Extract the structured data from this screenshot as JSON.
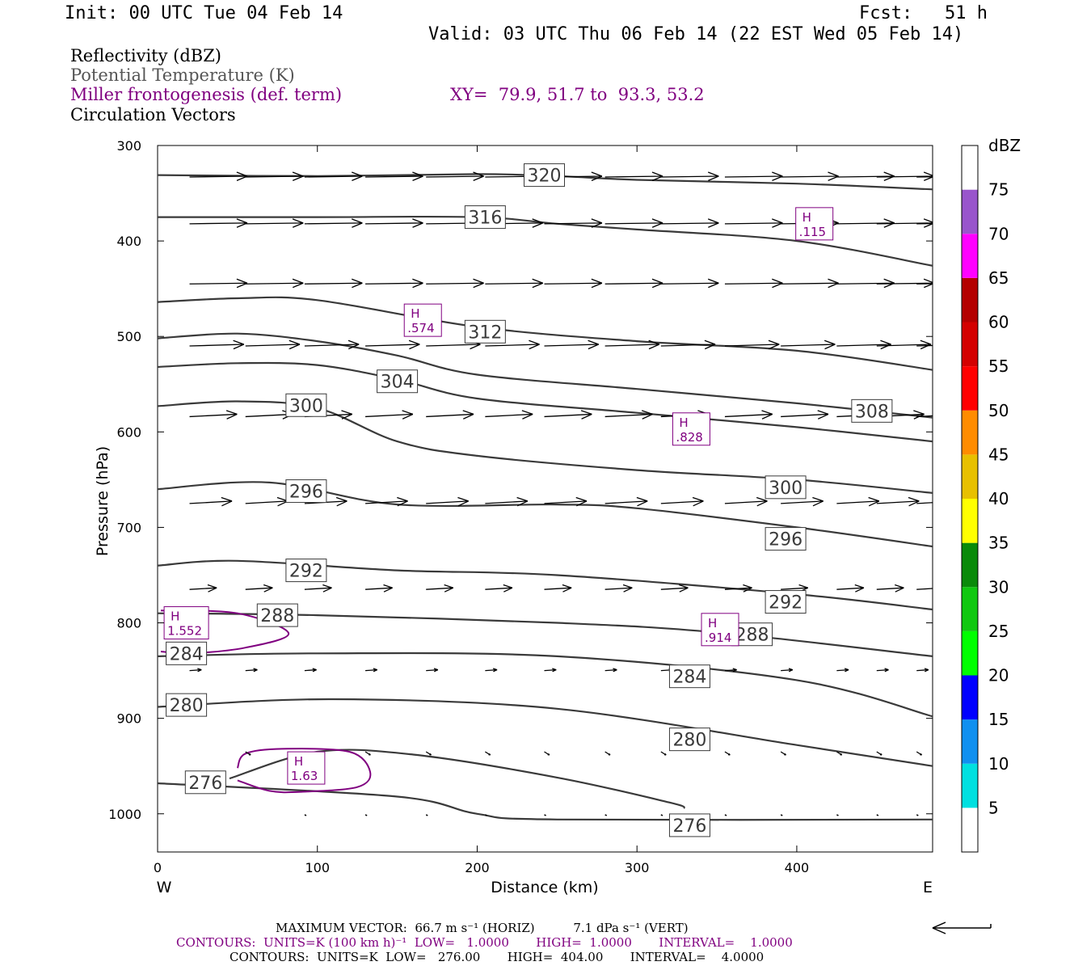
{
  "header": {
    "init": "Init: 00 UTC Tue 04 Feb 14",
    "fcst": "Fcst:   51 h",
    "valid": "Valid: 03 UTC Thu 06 Feb 14 (22 EST Wed 05 Feb 14)"
  },
  "legend": {
    "fields": [
      {
        "label": "Reflectivity (dBZ)",
        "color": "#000000"
      },
      {
        "label": "Potential Temperature (K)",
        "color": "#555555"
      },
      {
        "label": "Miller frontogenesis (def. term)",
        "color": "#800080"
      },
      {
        "label": "Circulation Vectors",
        "color": "#000000"
      }
    ],
    "xy": "XY=  79.9, 51.7 to  93.3, 53.2"
  },
  "footer": {
    "max_vector": "MAXIMUM VECTOR:  66.7 m s⁻¹ (HORIZ)          7.1 dPa s⁻¹ (VERT)",
    "contours_fronto": "CONTOURS:  UNITS=K (100 km h)⁻¹  LOW=   1.0000       HIGH=  1.0000       INTERVAL=    1.0000",
    "contours_theta": "CONTOURS:  UNITS=K  LOW=   276.00       HIGH=  404.00       INTERVAL=    4.0000"
  },
  "colorbar": {
    "title": "dBZ",
    "levels": [
      "5",
      "10",
      "15",
      "20",
      "25",
      "30",
      "35",
      "40",
      "45",
      "50",
      "55",
      "60",
      "65",
      "70",
      "75"
    ],
    "colors": [
      "#ffffff",
      "#00e0e0",
      "#1090f0",
      "#0000ff",
      "#00ff00",
      "#10c810",
      "#0a8a0a",
      "#ffff00",
      "#e8c000",
      "#ff8c00",
      "#ff0000",
      "#d40000",
      "#b40000",
      "#ff00ff",
      "#9955cc",
      "#ffffff"
    ]
  },
  "chart_data": {
    "type": "line",
    "title": "",
    "xlabel": "Distance (km)",
    "ylabel": "Pressure (hPa)",
    "xlim": [
      0,
      485
    ],
    "ylim": [
      300,
      1040
    ],
    "y_reversed": true,
    "x_ticks": [
      0,
      100,
      200,
      300,
      400
    ],
    "y_ticks": [
      300,
      400,
      500,
      600,
      700,
      800,
      900,
      1000
    ],
    "x_end_labels": {
      "left": "W",
      "right": "E"
    },
    "theta_contours": [
      {
        "value": 320,
        "points": [
          [
            0,
            331
          ],
          [
            100,
            332
          ],
          [
            200,
            330
          ],
          [
            250,
            332
          ],
          [
            300,
            336
          ],
          [
            400,
            340
          ],
          [
            485,
            346
          ]
        ],
        "labels": [
          [
            242,
            331
          ]
        ]
      },
      {
        "value": 316,
        "points": [
          [
            0,
            375
          ],
          [
            100,
            375
          ],
          [
            200,
            375
          ],
          [
            250,
            382
          ],
          [
            300,
            388
          ],
          [
            400,
            400
          ],
          [
            485,
            426
          ]
        ],
        "labels": [
          [
            205,
            375
          ]
        ]
      },
      {
        "value": 312,
        "points": [
          [
            0,
            464
          ],
          [
            50,
            460
          ],
          [
            100,
            462
          ],
          [
            200,
            490
          ],
          [
            300,
            505
          ],
          [
            400,
            515
          ],
          [
            485,
            535
          ]
        ],
        "labels": [
          [
            205,
            495
          ]
        ]
      },
      {
        "value": 308,
        "points": [
          [
            0,
            502
          ],
          [
            50,
            497
          ],
          [
            100,
            505
          ],
          [
            150,
            520
          ],
          [
            200,
            540
          ],
          [
            300,
            555
          ],
          [
            400,
            570
          ],
          [
            485,
            585
          ]
        ],
        "labels": [
          [
            447,
            578
          ]
        ]
      },
      {
        "value": 304,
        "points": [
          [
            0,
            532
          ],
          [
            50,
            528
          ],
          [
            100,
            530
          ],
          [
            150,
            545
          ],
          [
            200,
            565
          ],
          [
            300,
            580
          ],
          [
            400,
            595
          ],
          [
            485,
            610
          ]
        ],
        "labels": [
          [
            150,
            547
          ]
        ]
      },
      {
        "value": 300,
        "points": [
          [
            0,
            573
          ],
          [
            50,
            568
          ],
          [
            100,
            575
          ],
          [
            150,
            610
          ],
          [
            200,
            625
          ],
          [
            300,
            640
          ],
          [
            400,
            650
          ],
          [
            485,
            664
          ]
        ],
        "labels": [
          [
            93,
            572
          ],
          [
            393,
            658
          ]
        ]
      },
      {
        "value": 296,
        "points": [
          [
            0,
            660
          ],
          [
            70,
            653
          ],
          [
            150,
            676
          ],
          [
            250,
            676
          ],
          [
            300,
            680
          ],
          [
            400,
            700
          ],
          [
            485,
            720
          ]
        ],
        "labels": [
          [
            93,
            662
          ],
          [
            393,
            712
          ]
        ]
      },
      {
        "value": 292,
        "points": [
          [
            0,
            740
          ],
          [
            50,
            735
          ],
          [
            150,
            745
          ],
          [
            250,
            750
          ],
          [
            400,
            770
          ],
          [
            485,
            786
          ]
        ],
        "labels": [
          [
            93,
            745
          ],
          [
            393,
            778
          ]
        ]
      },
      {
        "value": 288,
        "points": [
          [
            0,
            790
          ],
          [
            100,
            792
          ],
          [
            250,
            800
          ],
          [
            350,
            810
          ],
          [
            485,
            835
          ]
        ],
        "labels": [
          [
            75,
            792
          ],
          [
            372,
            812
          ]
        ]
      },
      {
        "value": 284,
        "points": [
          [
            0,
            835
          ],
          [
            100,
            832
          ],
          [
            250,
            835
          ],
          [
            400,
            860
          ],
          [
            485,
            898
          ]
        ],
        "labels": [
          [
            18,
            832
          ],
          [
            333,
            856
          ]
        ]
      },
      {
        "value": 280,
        "points": [
          [
            0,
            888
          ],
          [
            110,
            880
          ],
          [
            250,
            890
          ],
          [
            400,
            928
          ],
          [
            485,
            950
          ]
        ],
        "labels": [
          [
            18,
            886
          ],
          [
            333,
            922
          ]
        ]
      },
      {
        "value": 276,
        "points": [
          [
            0,
            968
          ],
          [
            150,
            982
          ],
          [
            200,
            1000
          ],
          [
            250,
            1006
          ],
          [
            485,
            1006
          ]
        ],
        "labels": [
          [
            30,
            967
          ],
          [
            333,
            1012
          ]
        ]
      },
      {
        "value": 276,
        "points": [
          [
            45,
            963
          ],
          [
            100,
            935
          ],
          [
            160,
            938
          ],
          [
            250,
            962
          ],
          [
            320,
            988
          ],
          [
            330,
            994
          ]
        ],
        "labels": []
      }
    ],
    "frontogenesis_maxima": [
      {
        "label": "H",
        "value": "1.552",
        "x": 18,
        "y": 800
      },
      {
        "label": "H",
        "value": "1.63",
        "x": 93,
        "y": 952
      },
      {
        "label": "H",
        "value": ".574",
        "x": 166,
        "y": 483
      },
      {
        "label": "H",
        "value": ".828",
        "x": 334,
        "y": 597
      },
      {
        "label": "H",
        "value": ".914",
        "x": 352,
        "y": 807
      },
      {
        "label": "H",
        "value": ".115",
        "x": 411,
        "y": 382
      }
    ],
    "frontogenesis_contours": [
      {
        "value": 1.0,
        "points": [
          [
            2,
            787
          ],
          [
            50,
            790
          ],
          [
            82,
            811
          ],
          [
            55,
            826
          ],
          [
            20,
            832
          ],
          [
            2,
            830
          ]
        ]
      },
      {
        "value": 1.0,
        "points": [
          [
            50,
            952
          ],
          [
            55,
            937
          ],
          [
            78,
            932
          ],
          [
            120,
            935
          ],
          [
            133,
            956
          ],
          [
            125,
            972
          ],
          [
            90,
            977
          ],
          [
            70,
            976
          ],
          [
            50,
            965
          ]
        ]
      }
    ],
    "vector_rows": [
      {
        "p": 333,
        "xs": [
          20,
          55,
          92,
          130,
          168,
          205,
          242,
          280,
          315,
          355,
          390,
          425,
          450,
          475
        ],
        "u": 34,
        "w": -1
      },
      {
        "p": 382,
        "xs": [
          20,
          55,
          92,
          130,
          168,
          205,
          242,
          280,
          315,
          355,
          390,
          425,
          450,
          475
        ],
        "u": 34,
        "w": -1
      },
      {
        "p": 445,
        "xs": [
          20,
          55,
          92,
          130,
          168,
          205,
          242,
          280,
          315,
          355,
          390,
          425,
          450,
          475
        ],
        "u": 34,
        "w": -1
      },
      {
        "p": 510,
        "xs": [
          20,
          55,
          92,
          130,
          168,
          205,
          242,
          280,
          315,
          355,
          390,
          425,
          450,
          475
        ],
        "u": 32,
        "w": -2
      },
      {
        "p": 584,
        "xs": [
          20,
          55,
          92,
          130,
          168,
          205,
          242,
          280,
          315,
          355,
          390,
          425,
          450,
          475
        ],
        "u": 28,
        "w": -3
      },
      {
        "p": 675,
        "xs": [
          20,
          55,
          92,
          130,
          168,
          205,
          242,
          280,
          315,
          355,
          390,
          425,
          450,
          475
        ],
        "u": 25,
        "w": -3
      },
      {
        "p": 765,
        "xs": [
          20,
          55,
          92,
          130,
          168,
          205,
          242,
          280,
          315,
          355,
          390,
          425,
          450,
          475
        ],
        "u": 16,
        "w": -2
      },
      {
        "p": 850,
        "xs": [
          20,
          55,
          92,
          130,
          168,
          205,
          242,
          280,
          315,
          355,
          390,
          425,
          450,
          475
        ],
        "u": 7,
        "w": -1
      },
      {
        "p": 935,
        "xs": [
          55,
          92,
          130,
          168,
          205,
          242,
          280,
          315,
          355,
          390,
          425,
          450,
          475
        ],
        "u": 3,
        "w": 4
      },
      {
        "p": 1001,
        "xs": [
          92,
          130,
          168,
          205,
          242,
          280,
          315,
          355,
          390,
          425,
          450,
          475
        ],
        "u": 1,
        "w": 1
      }
    ]
  }
}
